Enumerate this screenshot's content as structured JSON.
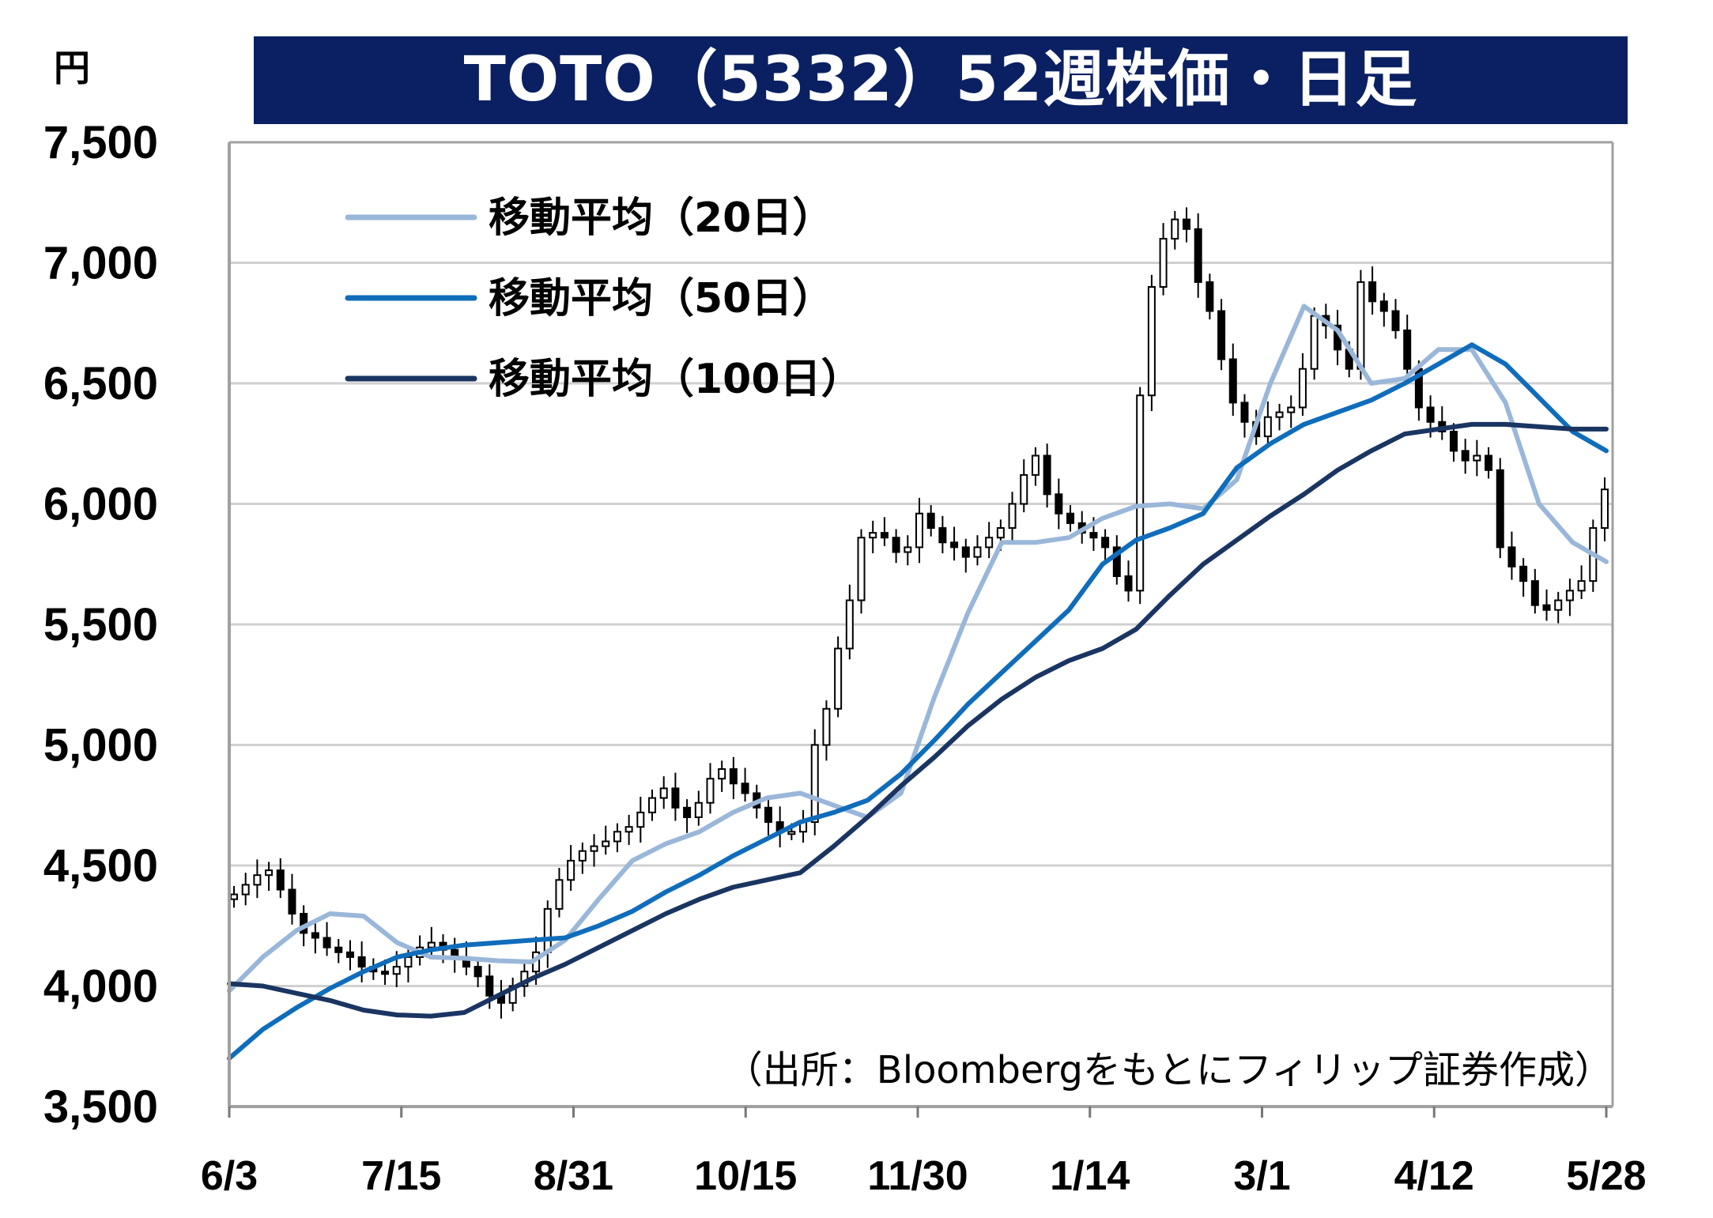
{
  "chart_data": {
    "type": "candlestick-line",
    "title": "TOTO（5332）52週株価・日足",
    "unit": "円",
    "source": "（出所：Bloombergをもとにフィリップ証券作成）",
    "ylim": [
      3500,
      7500
    ],
    "y_ticks": [
      3500,
      4000,
      4500,
      5000,
      5500,
      6000,
      6500,
      7000,
      7500
    ],
    "y_tick_labels": [
      "3,500",
      "4,000",
      "4,500",
      "5,000",
      "5,500",
      "6,000",
      "6,500",
      "7,000",
      "7,500"
    ],
    "x_tick_labels": [
      "6/3",
      "7/15",
      "8/31",
      "10/15",
      "11/30",
      "1/14",
      "3/1",
      "4/12",
      "5/28"
    ],
    "grid": true,
    "legend_position": "top-left",
    "series": [
      {
        "name": "移動平均（20日）",
        "color": "#9ab7d9",
        "values": [
          3980,
          4120,
          4230,
          4300,
          4290,
          4180,
          4120,
          4115,
          4105,
          4100,
          4190,
          4360,
          4520,
          4590,
          4640,
          4720,
          4780,
          4800,
          4750,
          4700,
          4800,
          5200,
          5550,
          5840,
          5840,
          5860,
          5940,
          5990,
          6000,
          5980,
          6100,
          6500,
          6820,
          6720,
          6500,
          6520,
          6640,
          6640,
          6420,
          6000,
          5840,
          5760
        ]
      },
      {
        "name": "移動平均（50日）",
        "color": "#0f6dbb",
        "values": [
          3700,
          3820,
          3910,
          3990,
          4060,
          4120,
          4150,
          4170,
          4180,
          4190,
          4200,
          4250,
          4310,
          4390,
          4460,
          4540,
          4610,
          4680,
          4720,
          4770,
          4880,
          5020,
          5170,
          5300,
          5430,
          5560,
          5750,
          5850,
          5900,
          5960,
          6150,
          6250,
          6330,
          6380,
          6430,
          6500,
          6580,
          6660,
          6580,
          6440,
          6300,
          6220
        ]
      },
      {
        "name": "移動平均（100日）",
        "color": "#1a3561",
        "values": [
          4010,
          4000,
          3970,
          3940,
          3900,
          3880,
          3875,
          3890,
          3960,
          4030,
          4090,
          4160,
          4230,
          4300,
          4360,
          4410,
          4440,
          4470,
          4580,
          4700,
          4830,
          4950,
          5080,
          5190,
          5280,
          5350,
          5400,
          5480,
          5620,
          5750,
          5850,
          5950,
          6040,
          6140,
          6220,
          6290,
          6310,
          6330,
          6330,
          6320,
          6310,
          6310
        ]
      }
    ],
    "daily_close": [
      4380,
      4420,
      4460,
      4480,
      4400,
      4300,
      4220,
      4200,
      4160,
      4140,
      4120,
      4080,
      4060,
      4050,
      4080,
      4120,
      4160,
      4180,
      4150,
      4120,
      4080,
      4040,
      3960,
      3930,
      4000,
      4060,
      4140,
      4320,
      4440,
      4520,
      4560,
      4580,
      4600,
      4640,
      4660,
      4720,
      4780,
      4820,
      4740,
      4700,
      4760,
      4860,
      4900,
      4840,
      4800,
      4740,
      4680,
      4640,
      4640,
      4680,
      5000,
      5150,
      5400,
      5600,
      5860,
      5880,
      5860,
      5800,
      5820,
      5960,
      5900,
      5840,
      5820,
      5780,
      5820,
      5860,
      5900,
      6000,
      6120,
      6200,
      6040,
      5960,
      5920,
      5880,
      5860,
      5820,
      5700,
      5640,
      6450,
      6900,
      7100,
      7180,
      7140,
      6920,
      6800,
      6600,
      6420,
      6340,
      6280,
      6360,
      6380,
      6400,
      6560,
      6780,
      6740,
      6640,
      6560,
      6920,
      6840,
      6800,
      6720,
      6560,
      6400,
      6340,
      6300,
      6220,
      6180,
      6200,
      6140,
      5820,
      5740,
      5680,
      5580,
      5560,
      5600,
      5640,
      5680,
      5900,
      6060
    ]
  }
}
